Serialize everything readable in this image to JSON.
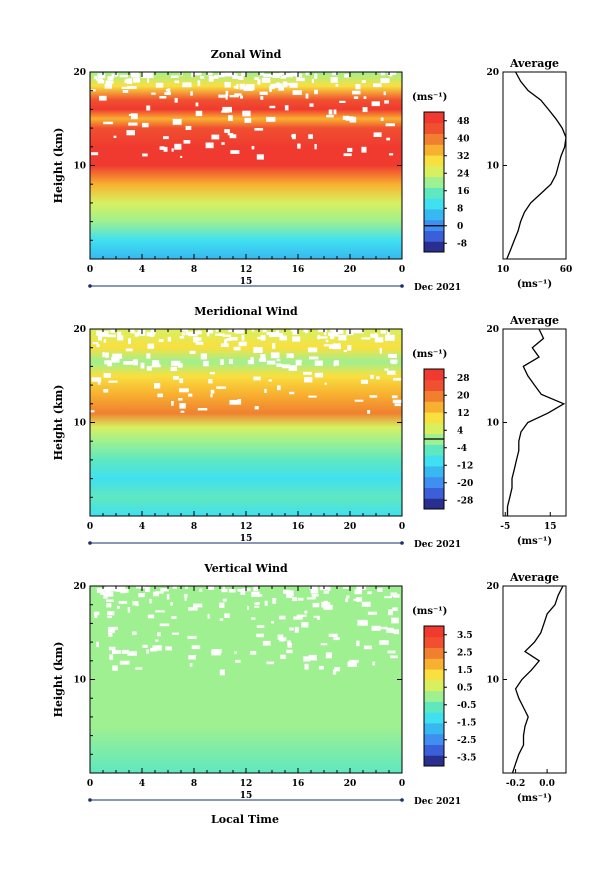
{
  "figure": {
    "xlabel": "Local Time"
  },
  "chart_data": [
    {
      "type": "heatmap",
      "title": "Zonal Wind",
      "ylabel": "Height (km)",
      "x_ticks": [
        "0",
        "4",
        "8",
        "12",
        "16",
        "20",
        "0"
      ],
      "y_ticks": [
        "10",
        "20"
      ],
      "xlim": [
        0,
        24
      ],
      "ylim": [
        0,
        20
      ],
      "day_label": "15",
      "date_label": "Dec 2021",
      "colorbar": {
        "unit": "(ms⁻¹)",
        "ticks": [
          "-8",
          "0",
          "8",
          "16",
          "24",
          "32",
          "40",
          "48"
        ],
        "min": -12,
        "max": 52,
        "zero_line": 0
      },
      "colors": [
        "#2a2f8f",
        "#3a5fd9",
        "#3e8ff0",
        "#37b8f0",
        "#40e0f0",
        "#5fe8c0",
        "#9ff090",
        "#d8f060",
        "#f8e040",
        "#f8b030",
        "#f08030",
        "#f05030",
        "#f03a30"
      ],
      "field": [
        {
          "h": 20,
          "v": 20
        },
        {
          "h": 18.5,
          "v": 28
        },
        {
          "h": 17,
          "v": 44
        },
        {
          "h": 16,
          "v": 48
        },
        {
          "h": 15,
          "v": 36
        },
        {
          "h": 14,
          "v": 44
        },
        {
          "h": 12,
          "v": 50
        },
        {
          "h": 10,
          "v": 52
        },
        {
          "h": 8,
          "v": 36
        },
        {
          "h": 6,
          "v": 24
        },
        {
          "h": 4,
          "v": 18
        },
        {
          "h": 2,
          "v": 12
        },
        {
          "h": 0,
          "v": 4
        }
      ],
      "profile": {
        "title": "Average",
        "xlabel": "(ms⁻¹)",
        "x_ticks": [
          "10",
          "60"
        ],
        "xlim": [
          10,
          60
        ],
        "y_ticks": [
          "10",
          "20"
        ],
        "height": [
          0,
          1,
          2,
          3,
          4,
          5,
          6,
          7,
          8,
          9,
          10,
          11,
          12,
          13,
          14,
          15,
          16,
          17,
          18,
          19,
          20
        ],
        "values": [
          13,
          16,
          19,
          22,
          24,
          27,
          32,
          40,
          48,
          52,
          54,
          56,
          59,
          60,
          57,
          52,
          46,
          40,
          30,
          24,
          20
        ]
      }
    },
    {
      "type": "heatmap",
      "title": "Meridional Wind",
      "ylabel": "Height (km)",
      "x_ticks": [
        "0",
        "4",
        "8",
        "12",
        "16",
        "20",
        "0"
      ],
      "y_ticks": [
        "10",
        "20"
      ],
      "xlim": [
        0,
        24
      ],
      "ylim": [
        0,
        20
      ],
      "day_label": "15",
      "date_label": "Dec 2021",
      "colorbar": {
        "unit": "(ms⁻¹)",
        "ticks": [
          "-28",
          "-20",
          "-12",
          "-4",
          "4",
          "12",
          "20",
          "28"
        ],
        "min": -32,
        "max": 32,
        "zero_line": 0
      },
      "colors": [
        "#2a2f8f",
        "#3a5fd9",
        "#3e8ff0",
        "#37b8f0",
        "#40e0f0",
        "#5fe8c0",
        "#9ff090",
        "#d8f060",
        "#f8e040",
        "#f8b030",
        "#f08030",
        "#f05030",
        "#f03a30"
      ],
      "field": [
        {
          "h": 20,
          "v": 6
        },
        {
          "h": 18,
          "v": 8
        },
        {
          "h": 16.5,
          "v": 2
        },
        {
          "h": 15,
          "v": 10
        },
        {
          "h": 13,
          "v": 16
        },
        {
          "h": 11,
          "v": 20
        },
        {
          "h": 9.5,
          "v": 6
        },
        {
          "h": 8,
          "v": -2
        },
        {
          "h": 6,
          "v": -6
        },
        {
          "h": 4,
          "v": -8
        },
        {
          "h": 2,
          "v": -6
        },
        {
          "h": 0,
          "v": -8
        }
      ],
      "profile": {
        "title": "Average",
        "xlabel": "(ms⁻¹)",
        "x_ticks": [
          "-5",
          "15"
        ],
        "xlim": [
          -6,
          22
        ],
        "y_ticks": [
          "10",
          "20"
        ],
        "height": [
          0,
          1,
          2,
          3,
          4,
          5,
          6,
          7,
          8,
          9,
          10,
          11,
          12,
          13,
          14,
          15,
          16,
          17,
          18,
          19,
          20
        ],
        "values": [
          -4,
          -4,
          -3,
          -2,
          -2,
          -1,
          0,
          1,
          1,
          2,
          5,
          14,
          21,
          11,
          8,
          5,
          3,
          10,
          7,
          12,
          10
        ]
      }
    },
    {
      "type": "heatmap",
      "title": "Vertical Wind",
      "ylabel": "Height (km)",
      "x_ticks": [
        "0",
        "4",
        "8",
        "12",
        "16",
        "20",
        "0"
      ],
      "y_ticks": [
        "10",
        "20"
      ],
      "xlim": [
        0,
        24
      ],
      "ylim": [
        0,
        20
      ],
      "day_label": "15",
      "date_label": "Dec 2021",
      "colorbar": {
        "unit": "(ms⁻¹)",
        "ticks": [
          "-3.5",
          "-2.5",
          "-1.5",
          "-0.5",
          "0.5",
          "1.5",
          "2.5",
          "3.5"
        ],
        "min": -4,
        "max": 4,
        "zero_line": null
      },
      "colors": [
        "#2a2f8f",
        "#3a5fd9",
        "#3e8ff0",
        "#37b8f0",
        "#40e0f0",
        "#5fe8c0",
        "#9ff090",
        "#d8f060",
        "#f8e040",
        "#f8b030",
        "#f08030",
        "#f05030",
        "#f03a30"
      ],
      "field": [
        {
          "h": 20,
          "v": 0.1
        },
        {
          "h": 15,
          "v": 0.0
        },
        {
          "h": 10,
          "v": -0.2
        },
        {
          "h": 5,
          "v": -0.3
        },
        {
          "h": 0,
          "v": -0.5
        }
      ],
      "profile": {
        "title": "Average",
        "xlabel": "(ms⁻¹)",
        "x_ticks": [
          "-0.2",
          "0.0"
        ],
        "xlim": [
          -0.28,
          0.12
        ],
        "y_ticks": [
          "10",
          "20"
        ],
        "height": [
          0,
          1,
          2,
          3,
          4,
          5,
          6,
          7,
          8,
          9,
          10,
          11,
          12,
          13,
          14,
          15,
          16,
          17,
          18,
          19,
          20
        ],
        "values": [
          -0.22,
          -0.2,
          -0.18,
          -0.15,
          -0.15,
          -0.14,
          -0.12,
          -0.15,
          -0.18,
          -0.2,
          -0.16,
          -0.1,
          -0.05,
          -0.14,
          -0.08,
          -0.04,
          -0.02,
          0.0,
          0.05,
          0.07,
          0.1
        ]
      }
    }
  ]
}
